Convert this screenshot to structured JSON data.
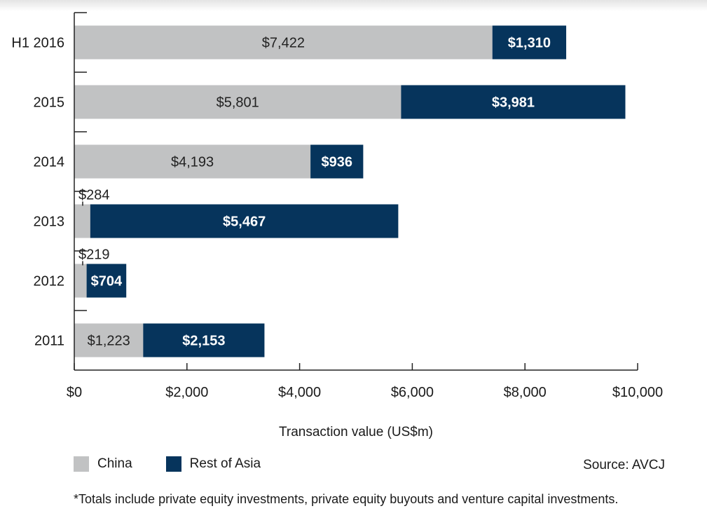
{
  "chart_data": {
    "type": "bar",
    "orientation": "horizontal",
    "stacked": true,
    "categories": [
      "H1 2016",
      "2015",
      "2014",
      "2013",
      "2012",
      "2011"
    ],
    "series": [
      {
        "name": "China",
        "color": "#c1c2c3",
        "values": [
          7422,
          5801,
          4193,
          284,
          219,
          1223
        ],
        "labels": [
          "$7,422",
          "$5,801",
          "$4,193",
          "$284",
          "$219",
          "$1,223"
        ]
      },
      {
        "name": "Rest of Asia",
        "color": "#06345c",
        "values": [
          1310,
          3981,
          936,
          5467,
          704,
          2153
        ],
        "labels": [
          "$1,310",
          "$3,981",
          "$936",
          "$5,467",
          "$704",
          "$2,153"
        ]
      }
    ],
    "xlabel": "Transaction value (US$m)",
    "xlim": [
      0,
      10000
    ],
    "xticks": [
      0,
      2000,
      4000,
      6000,
      8000,
      10000
    ],
    "xtick_labels": [
      "$0",
      "$2,000",
      "$4,000",
      "$6,000",
      "$8,000",
      "$10,000"
    ],
    "grid": false,
    "legend_position": "bottom-left"
  },
  "legend": {
    "china_label": "China",
    "rest_label": "Rest of Asia"
  },
  "source": "Source: AVCJ",
  "footnote": "*Totals include private equity investments, private equity buyouts and venture capital investments."
}
